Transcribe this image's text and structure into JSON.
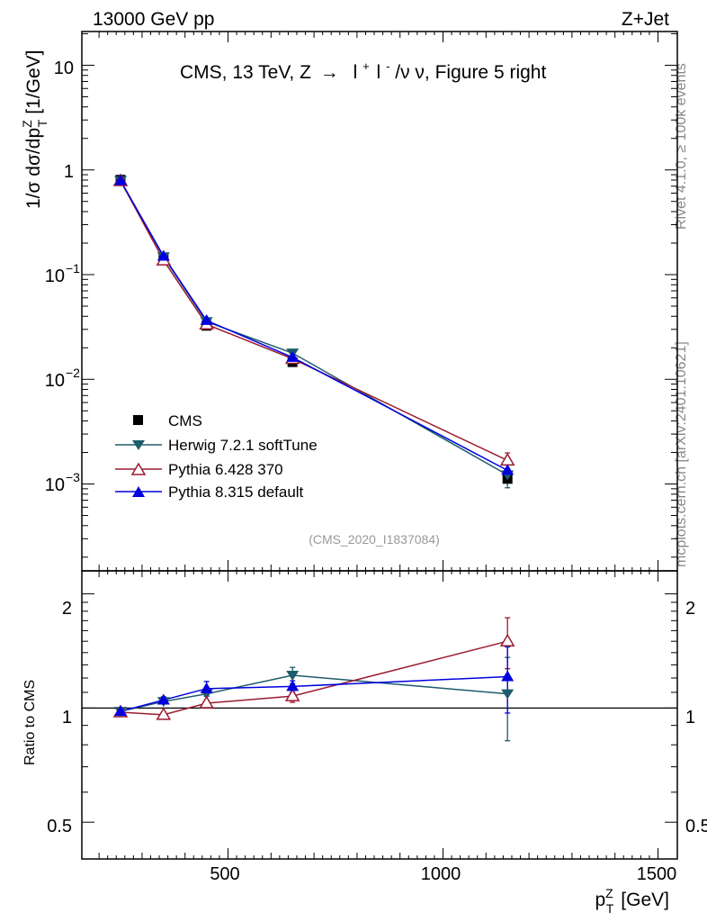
{
  "header": {
    "beam": "13000 GeV pp",
    "process": "Z+Jet",
    "title_pre": "CMS, 13 TeV, Z",
    "title_arrow": "→",
    "title_mid": "l",
    "title_plus": "+",
    "title_l2": "l",
    "title_minus": "-",
    "title_post": "/ν ν, Figure 5 right"
  },
  "side": {
    "rivet": "Rivet 4.1.0, ≥ 100k events",
    "mcplots": "mcplots.cern.ch [arXiv:2401.10621]"
  },
  "watermark": "(CMS_2020_I1837084)",
  "axes": {
    "ylabel_main": "1/σ dσ/dp",
    "ylabel_main_sup": "Z",
    "ylabel_main_sub": "T",
    "ylabel_main_unit": "[1/GeV]",
    "ylabel_ratio": "Ratio to CMS",
    "xlabel": "p",
    "xlabel_sup": "Z",
    "xlabel_sub": "T",
    "xlabel_unit": "[GeV]",
    "xticks": [
      "500",
      "1000",
      "1500"
    ],
    "yticks_main": [
      {
        "label": "10",
        "exp": ""
      },
      {
        "label": "1",
        "exp": ""
      },
      {
        "label": "10",
        "exp": "−1"
      },
      {
        "label": "10",
        "exp": "−2"
      },
      {
        "label": "10",
        "exp": "−3"
      }
    ],
    "yticks_ratio": [
      "2",
      "1",
      "0.5"
    ]
  },
  "legend": [
    "CMS",
    "Herwig 7.2.1 softTune",
    "Pythia 6.428 370",
    "Pythia 8.315 default"
  ],
  "chart_data": [
    {
      "type": "scatter",
      "panel": "main",
      "xscale": "linear",
      "yscale": "log",
      "xlim": [
        160,
        1545
      ],
      "ylim": [
        0.000148,
        21
      ],
      "x": [
        250,
        350,
        450,
        650,
        1150
      ],
      "series": [
        {
          "name": "CMS",
          "color": "#000000",
          "marker": "square",
          "values": [
            0.805,
            0.143,
            0.0325,
            0.0146,
            0.00112
          ]
        },
        {
          "name": "Herwig 7.2.1 softTune",
          "color": "#1d5c6a",
          "marker": "triangle-down",
          "values": [
            0.79,
            0.148,
            0.0355,
            0.0178,
            0.00122
          ],
          "errors": [
            0,
            0,
            0,
            0.0008,
            0.0003
          ]
        },
        {
          "name": "Pythia 6.428 370",
          "color": "#9b1b30",
          "marker": "triangle-up-open",
          "values": [
            0.785,
            0.137,
            0.0335,
            0.0157,
            0.00168
          ],
          "errors": [
            0,
            0,
            0,
            0.0006,
            0.0003
          ]
        },
        {
          "name": "Pythia 8.315 default",
          "color": "#0000e0",
          "marker": "triangle-up",
          "values": [
            0.79,
            0.15,
            0.0365,
            0.0162,
            0.00135
          ],
          "errors": [
            0,
            0,
            0.0015,
            0.0006,
            0.0002
          ]
        }
      ]
    },
    {
      "type": "scatter",
      "panel": "ratio",
      "xscale": "linear",
      "yscale": "log",
      "xlim": [
        160,
        1545
      ],
      "ylim": [
        0.4,
        2.3
      ],
      "hline": 1,
      "x": [
        250,
        350,
        450,
        650,
        1150
      ],
      "series": [
        {
          "name": "Herwig 7.2.1 softTune",
          "color": "#1d5c6a",
          "marker": "triangle-down",
          "values": [
            0.98,
            1.04,
            1.09,
            1.22,
            1.09
          ],
          "errors": [
            0,
            0,
            0.04,
            0.06,
            0.27
          ]
        },
        {
          "name": "Pythia 6.428 370",
          "color": "#9b1b30",
          "marker": "triangle-up-open",
          "values": [
            0.975,
            0.96,
            1.03,
            1.075,
            1.5
          ],
          "errors": [
            0,
            0,
            0,
            0.04,
            0.23
          ]
        },
        {
          "name": "Pythia 8.315 default",
          "color": "#0000e0",
          "marker": "triangle-up",
          "values": [
            0.98,
            1.05,
            1.125,
            1.14,
            1.21
          ],
          "errors": [
            0,
            0.02,
            0.05,
            0.04,
            0.24
          ]
        }
      ]
    }
  ]
}
